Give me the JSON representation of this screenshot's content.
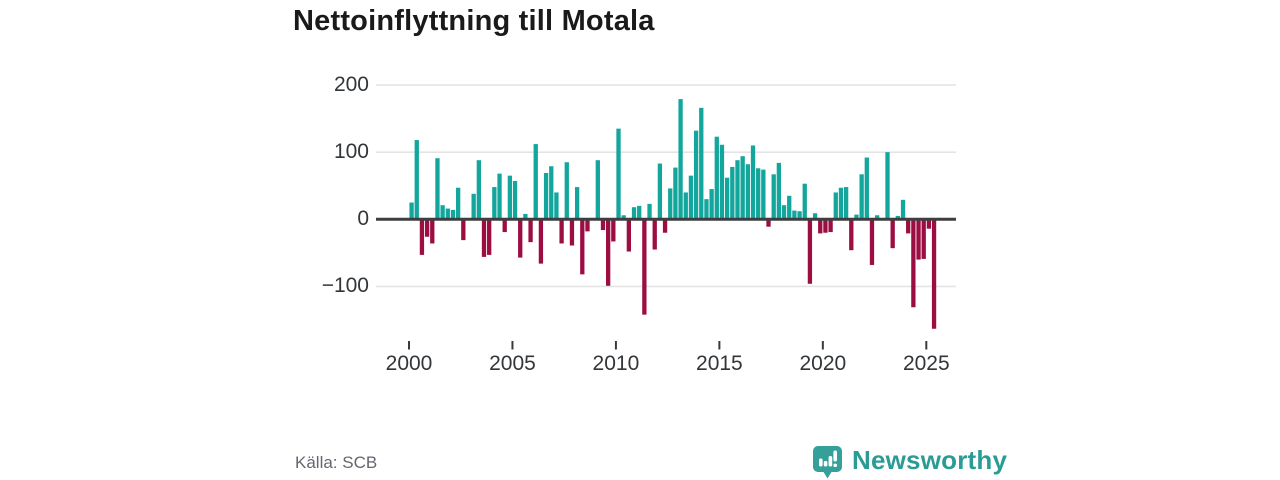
{
  "title": "Nettoinflyttning till Motala",
  "source": "Källa: SCB",
  "brand": {
    "name": "Newsworthy",
    "icon": "newsworthy-pin-barchart-icon",
    "text_color": "#2a9c94",
    "icon_color": "#35a09a"
  },
  "colors": {
    "positive_bar": "#12a69c",
    "negative_bar": "#9c0d41",
    "gridline": "#e4e4e4",
    "zero_line": "#3e3e40",
    "tick_mark": "#3a3a3a",
    "axis_text": "#333639",
    "title_text": "#1a1a1a",
    "source_text": "#63676e",
    "background": "#ffffff"
  },
  "chart_data": {
    "type": "bar",
    "title": "Nettoinflyttning till Motala",
    "period": "quarterly",
    "start_year": 2000,
    "start_quarter": 1,
    "values": [
      25,
      118,
      -53,
      -26,
      -36,
      91,
      21,
      16,
      14,
      47,
      -31,
      0,
      38,
      88,
      -56,
      -53,
      48,
      68,
      -19,
      65,
      57,
      -57,
      8,
      -34,
      112,
      -66,
      69,
      79,
      40,
      -36,
      85,
      -39,
      48,
      -82,
      -18,
      0,
      88,
      -16,
      -99,
      -33,
      135,
      6,
      -48,
      18,
      20,
      -142,
      23,
      -45,
      83,
      -20,
      46,
      77,
      179,
      40,
      65,
      132,
      166,
      30,
      45,
      123,
      111,
      62,
      78,
      88,
      94,
      82,
      110,
      76,
      74,
      -11,
      67,
      84,
      21,
      35,
      13,
      12,
      53,
      -96,
      9,
      -21,
      -20,
      -19,
      40,
      47,
      48,
      -46,
      7,
      67,
      92,
      -68,
      6,
      0,
      100,
      -43,
      5,
      29,
      -21,
      -131,
      -60,
      -59,
      -14,
      -163
    ],
    "x_ticks": [
      2000,
      2005,
      2010,
      2015,
      2020,
      2025
    ],
    "x_tick_labels": [
      "2000",
      "2005",
      "2010",
      "2015",
      "2020",
      "2025"
    ],
    "y_ticks": [
      200,
      100,
      0,
      -100
    ],
    "y_tick_labels": [
      "200",
      "100",
      "0",
      "−100"
    ],
    "ylim": [
      -175,
      210
    ],
    "grid": "horizontal",
    "legend": "none"
  }
}
